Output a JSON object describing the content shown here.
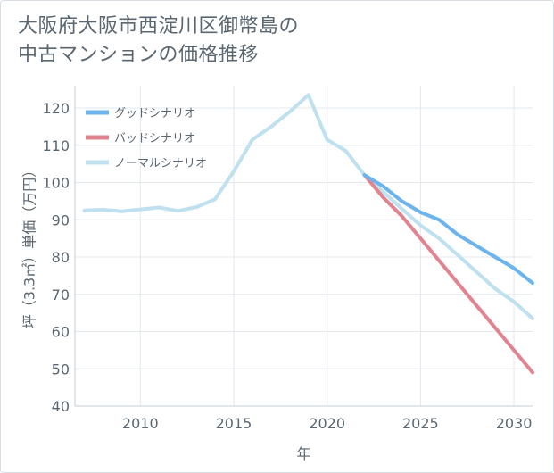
{
  "title_line1": "大阪府大阪市西淀川区御幣島の",
  "title_line2": "中古マンションの価格推移",
  "chart_data": {
    "type": "line",
    "xlabel": "年",
    "ylabel": "坪（3.3㎡）単価（万円）",
    "xlim": [
      2006.5,
      2031
    ],
    "ylim": [
      40,
      126
    ],
    "xticks": [
      2010,
      2015,
      2020,
      2025,
      2030
    ],
    "yticks": [
      40,
      50,
      60,
      70,
      80,
      90,
      100,
      110,
      120
    ],
    "grid": true,
    "legend_position": "top-left",
    "series": [
      {
        "name": "グッドシナリオ",
        "color": "#6cb4ee",
        "x": [
          2022,
          2023,
          2024,
          2025,
          2026,
          2027,
          2028,
          2029,
          2030,
          2031
        ],
        "y": [
          102,
          99,
          95,
          92,
          90,
          86,
          83,
          80,
          77,
          73
        ]
      },
      {
        "name": "バッドシナリオ",
        "color": "#e0848f",
        "x": [
          2022,
          2023,
          2024,
          2025,
          2026,
          2027,
          2028,
          2029,
          2030,
          2031
        ],
        "y": [
          102,
          96,
          91,
          85,
          79,
          73,
          67,
          61,
          55,
          49
        ]
      },
      {
        "name": "ノーマルシナリオ",
        "color": "#bfe0ef",
        "x": [
          2007,
          2008,
          2009,
          2010,
          2011,
          2012,
          2013,
          2014,
          2015,
          2016,
          2017,
          2018,
          2019,
          2020,
          2021,
          2022,
          2023,
          2024,
          2025,
          2026,
          2027,
          2028,
          2029,
          2030,
          2031
        ],
        "y": [
          92.5,
          92.7,
          92.3,
          92.8,
          93.3,
          92.4,
          93.4,
          95.5,
          103,
          111.5,
          115,
          119,
          123.5,
          111.5,
          108.5,
          102,
          97.5,
          93,
          88.5,
          85,
          80.5,
          76,
          71.5,
          68,
          63.5
        ]
      }
    ]
  }
}
